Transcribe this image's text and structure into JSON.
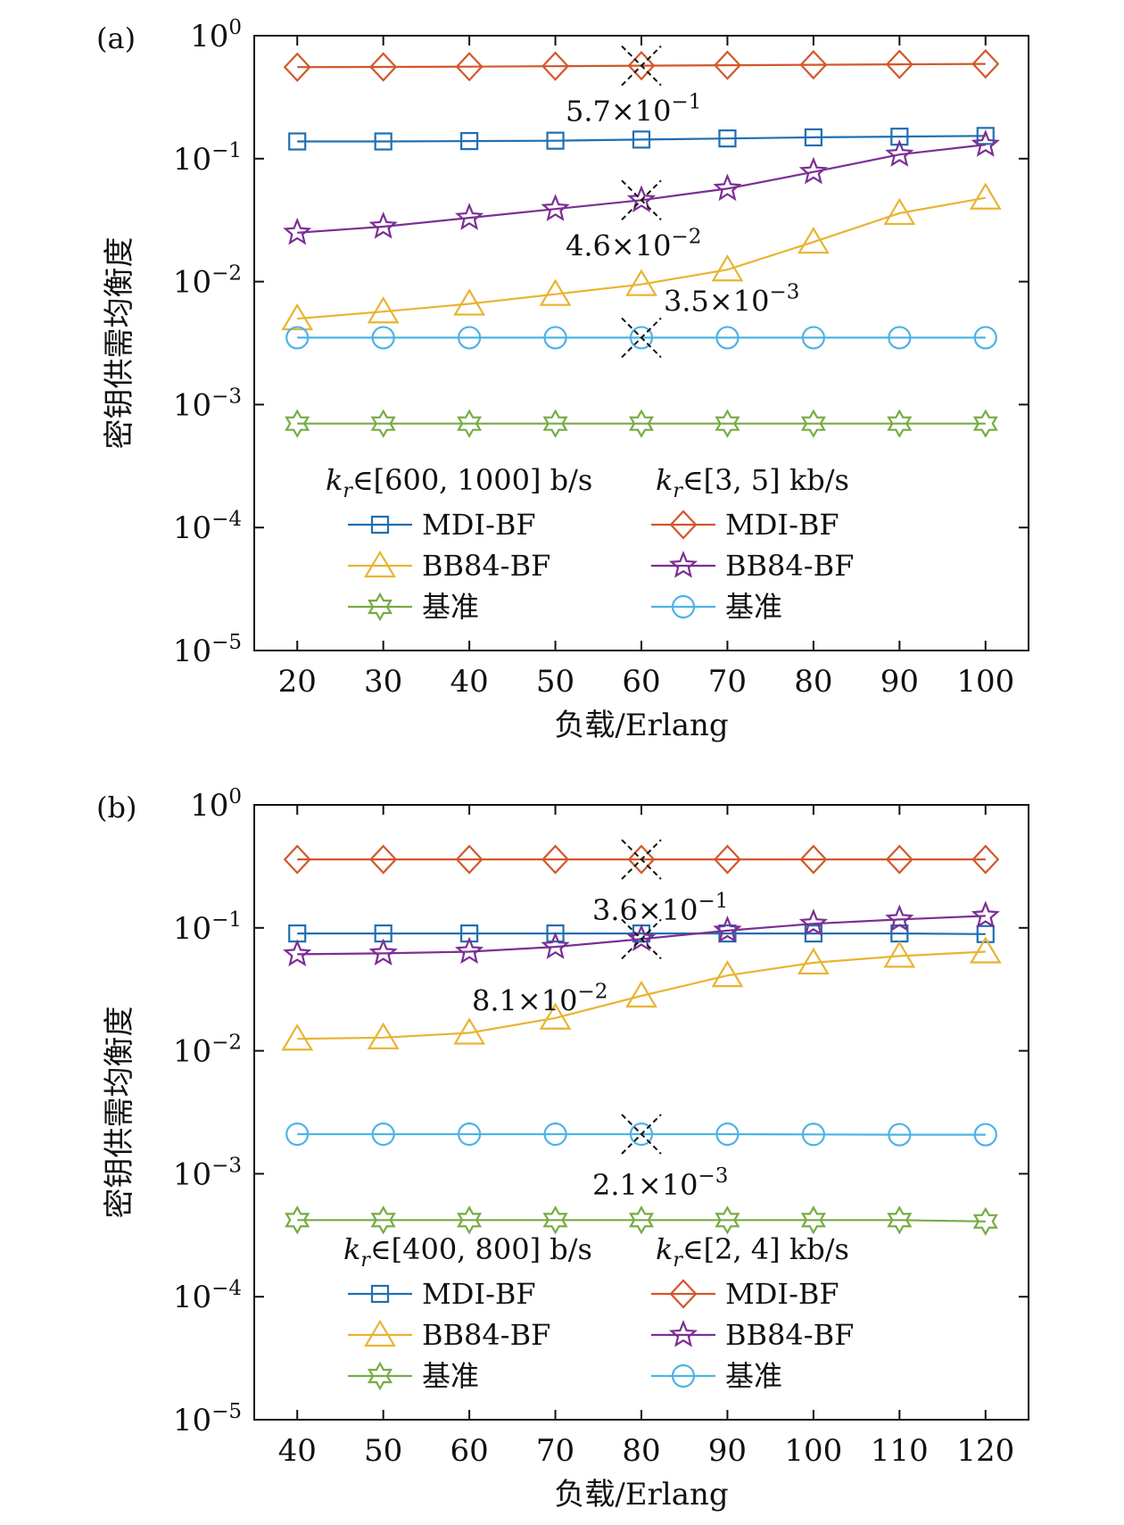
{
  "figure": {
    "colors": {
      "mdi_low": "#1f6fb2",
      "mdi_high": "#d2572a",
      "bb84_low": "#e8b431",
      "bb84_high": "#7b2f93",
      "base_low": "#77ab43",
      "base_high": "#4db3e6"
    }
  },
  "chart_data": [
    {
      "type": "line",
      "panel_label": "(a)",
      "xlabel": "负载/Erlang",
      "ylabel": "密钥供需均衡度",
      "yscale": "log",
      "ylim": [
        1e-05,
        1
      ],
      "ytick_labels": [
        {
          "base": "10",
          "exp": "0"
        },
        {
          "base": "10",
          "exp": "−1"
        },
        {
          "base": "10",
          "exp": "−2"
        },
        {
          "base": "10",
          "exp": "−3"
        },
        {
          "base": "10",
          "exp": "−4"
        },
        {
          "base": "10",
          "exp": "−5"
        }
      ],
      "x": [
        20,
        30,
        40,
        50,
        60,
        70,
        80,
        90,
        100
      ],
      "xlim": [
        15,
        105
      ],
      "legend_headers": [
        "kr∈[600, 1000] b/s",
        "kr∈[3, 5] kb/s"
      ],
      "series": [
        {
          "name": "MDI-BF",
          "group": 0,
          "marker": "square",
          "color": "#1f6fb2",
          "values": [
            0.138,
            0.138,
            0.139,
            0.14,
            0.143,
            0.146,
            0.149,
            0.151,
            0.153
          ]
        },
        {
          "name": "BB84-BF",
          "group": 0,
          "marker": "triangle",
          "color": "#e8b431",
          "values": [
            0.005,
            0.0057,
            0.0066,
            0.0079,
            0.0095,
            0.0125,
            0.021,
            0.036,
            0.048
          ]
        },
        {
          "name": "基准",
          "group": 0,
          "marker": "star6",
          "color": "#77ab43",
          "values": [
            0.0007,
            0.0007,
            0.0007,
            0.0007,
            0.0007,
            0.0007,
            0.0007,
            0.0007,
            0.0007
          ]
        },
        {
          "name": "MDI-BF",
          "group": 1,
          "marker": "diamond",
          "color": "#d2572a",
          "values": [
            0.555,
            0.557,
            0.56,
            0.565,
            0.57,
            0.575,
            0.58,
            0.585,
            0.59
          ]
        },
        {
          "name": "BB84-BF",
          "group": 1,
          "marker": "star5",
          "color": "#7b2f93",
          "values": [
            0.025,
            0.028,
            0.033,
            0.039,
            0.046,
            0.057,
            0.078,
            0.108,
            0.13
          ]
        },
        {
          "name": "基准",
          "group": 1,
          "marker": "circle",
          "color": "#4db3e6",
          "values": [
            0.0035,
            0.0035,
            0.0035,
            0.0035,
            0.0035,
            0.0035,
            0.0035,
            0.0035,
            0.0035
          ]
        }
      ],
      "annotations": [
        {
          "x": 60,
          "y": 0.57,
          "mant": "5.7",
          "exp": "−1",
          "pos": "below"
        },
        {
          "x": 60,
          "y": 0.046,
          "mant": "4.6",
          "exp": "−2",
          "pos": "below"
        },
        {
          "x": 60,
          "y": 0.0035,
          "mant": "3.5",
          "exp": "−3",
          "pos": "above-right"
        }
      ]
    },
    {
      "type": "line",
      "panel_label": "(b)",
      "xlabel": "负载/Erlang",
      "ylabel": "密钥供需均衡度",
      "yscale": "log",
      "ylim": [
        1e-05,
        1
      ],
      "ytick_labels": [
        {
          "base": "10",
          "exp": "0"
        },
        {
          "base": "10",
          "exp": "−1"
        },
        {
          "base": "10",
          "exp": "−2"
        },
        {
          "base": "10",
          "exp": "−3"
        },
        {
          "base": "10",
          "exp": "−4"
        },
        {
          "base": "10",
          "exp": "−5"
        }
      ],
      "x": [
        40,
        50,
        60,
        70,
        80,
        90,
        100,
        110,
        120
      ],
      "xlim": [
        35,
        125
      ],
      "legend_headers": [
        "kr∈[400, 800] b/s",
        "kr∈[2, 4] kb/s"
      ],
      "series": [
        {
          "name": "MDI-BF",
          "group": 0,
          "marker": "square",
          "color": "#1f6fb2",
          "values": [
            0.09,
            0.09,
            0.09,
            0.09,
            0.09,
            0.09,
            0.09,
            0.09,
            0.089
          ]
        },
        {
          "name": "BB84-BF",
          "group": 0,
          "marker": "triangle",
          "color": "#e8b431",
          "values": [
            0.0125,
            0.0128,
            0.014,
            0.0185,
            0.028,
            0.041,
            0.052,
            0.059,
            0.064
          ]
        },
        {
          "name": "基准",
          "group": 0,
          "marker": "star6",
          "color": "#77ab43",
          "values": [
            0.00042,
            0.00042,
            0.00042,
            0.00042,
            0.00042,
            0.00042,
            0.00042,
            0.00042,
            0.00041
          ]
        },
        {
          "name": "MDI-BF",
          "group": 1,
          "marker": "diamond",
          "color": "#d2572a",
          "values": [
            0.36,
            0.36,
            0.36,
            0.36,
            0.36,
            0.36,
            0.36,
            0.36,
            0.36
          ]
        },
        {
          "name": "BB84-BF",
          "group": 1,
          "marker": "star5",
          "color": "#7b2f93",
          "values": [
            0.061,
            0.062,
            0.064,
            0.07,
            0.081,
            0.095,
            0.108,
            0.117,
            0.125
          ]
        },
        {
          "name": "基准",
          "group": 1,
          "marker": "circle",
          "color": "#4db3e6",
          "values": [
            0.0021,
            0.0021,
            0.0021,
            0.0021,
            0.0021,
            0.0021,
            0.00209,
            0.00208,
            0.00208
          ]
        }
      ],
      "annotations": [
        {
          "x": 80,
          "y": 0.36,
          "mant": "3.6",
          "exp": "−1",
          "pos": "below-right"
        },
        {
          "x": 80,
          "y": 0.081,
          "mant": "8.1",
          "exp": "−2",
          "pos": "below-left"
        },
        {
          "x": 80,
          "y": 0.0021,
          "mant": "2.1",
          "exp": "−3",
          "pos": "below-right"
        }
      ]
    }
  ]
}
